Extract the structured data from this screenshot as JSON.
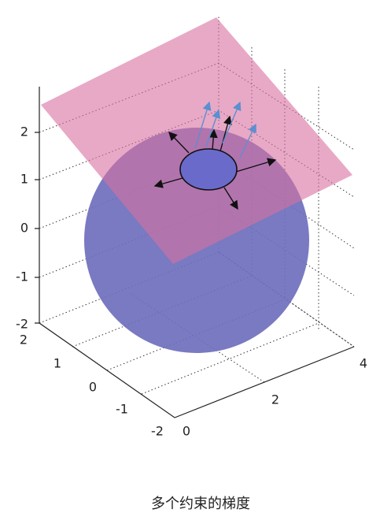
{
  "axes": {
    "z_ticks": [
      "2",
      "1",
      "0",
      "-1",
      "-2"
    ],
    "y_ticks": [
      "2",
      "1",
      "0",
      "-1",
      "-2"
    ],
    "x_ticks": [
      "0",
      "2",
      "4"
    ]
  },
  "caption": "多个约束的梯度"
}
